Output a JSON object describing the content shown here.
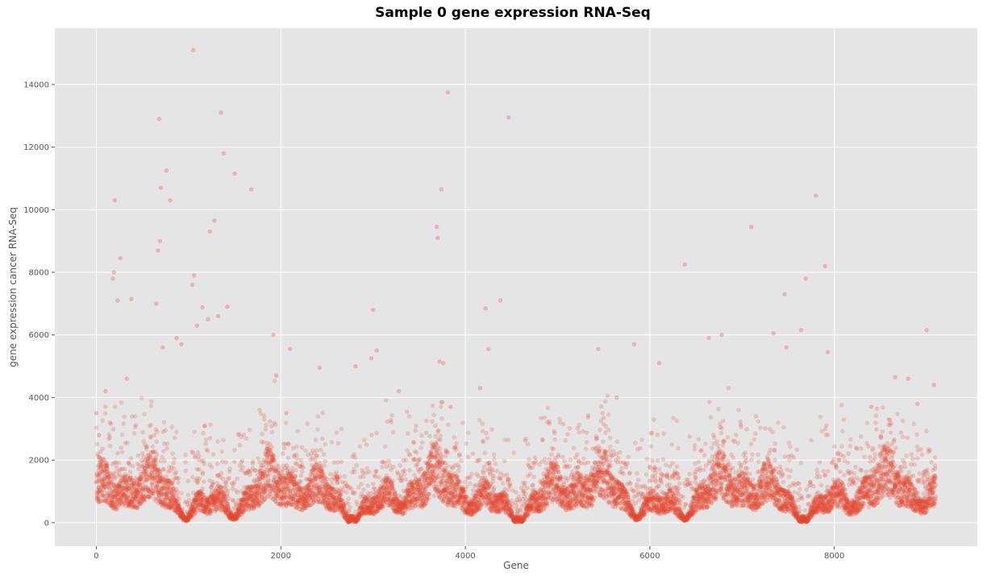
{
  "chart_data": {
    "type": "scatter",
    "title": "Sample 0 gene expression RNA-Seq",
    "xlabel": "Gene",
    "ylabel": "gene expression cancer RNA-Seq",
    "xlim": [
      -450,
      9550
    ],
    "ylim": [
      -750,
      15800
    ],
    "xticks": [
      0,
      2000,
      4000,
      6000,
      8000
    ],
    "yticks": [
      0,
      2000,
      4000,
      6000,
      8000,
      10000,
      12000,
      14000
    ],
    "grid": true,
    "marker_color": "#E24A33",
    "background_color": "#E5E5E5",
    "grid_color": "#FFFFFF",
    "n_points_total": 9100,
    "points_note": "~9100 dense points (mostly 0-2500); representative outliers listed below",
    "x": [
      0,
      30,
      100,
      180,
      190,
      200,
      230,
      260,
      330,
      380,
      650,
      670,
      680,
      690,
      700,
      720,
      760,
      800,
      870,
      920,
      1040,
      1050,
      1060,
      1090,
      1150,
      1210,
      1230,
      1280,
      1320,
      1350,
      1380,
      1420,
      1500,
      1680,
      1920,
      1950,
      2060,
      2100,
      2420,
      2810,
      2980,
      3000,
      3040,
      3280,
      3690,
      3700,
      3720,
      3740,
      3760,
      3810,
      3840,
      4160,
      4220,
      4250,
      4380,
      4470,
      5440,
      5640,
      5830,
      6100,
      6380,
      6640,
      6780,
      7100,
      7340,
      7460,
      7480,
      7640,
      7690,
      7800,
      7900,
      7930,
      8400,
      8660,
      8800,
      8900,
      9000,
      9080
    ],
    "y": [
      3500,
      2800,
      4200,
      7800,
      8000,
      10300,
      7100,
      8450,
      4600,
      7150,
      7000,
      8700,
      12900,
      9000,
      10700,
      5600,
      11250,
      10300,
      5900,
      5700,
      7600,
      15100,
      7900,
      6300,
      6880,
      6500,
      9300,
      9650,
      6600,
      13100,
      11800,
      6900,
      11150,
      10650,
      6000,
      4700,
      3500,
      5550,
      4950,
      5000,
      5250,
      6800,
      5500,
      4200,
      9450,
      9100,
      5150,
      10650,
      5100,
      13750,
      3700,
      4300,
      6850,
      5550,
      7100,
      12950,
      5550,
      4000,
      5700,
      5100,
      8250,
      5900,
      6000,
      9450,
      6050,
      7300,
      5600,
      6150,
      7800,
      10450,
      8200,
      5450,
      3700,
      4650,
      4600,
      3800,
      6150,
      4400
    ]
  }
}
